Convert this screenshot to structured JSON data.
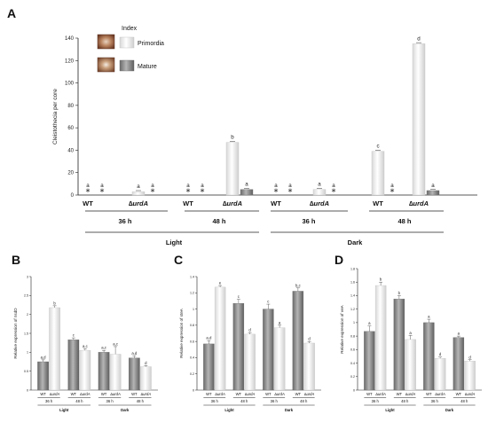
{
  "panel_letters": {
    "A": "A",
    "B": "B",
    "C": "C",
    "D": "D"
  },
  "labels": {
    "WT": "WT",
    "mut": "∆urdA",
    "t36": "36 h",
    "t48": "48 h",
    "light": "Light",
    "dark": "Dark",
    "star": "*"
  },
  "legend": {
    "title": "Index",
    "primordia": "Primordia",
    "mature": "Mature"
  },
  "colors": {
    "light_bar": "#eeeeee",
    "dark_bar": "#888888",
    "axis": "#222222"
  },
  "chart_data": [
    {
      "panel": "A",
      "type": "bar",
      "ylabel": "Cleistothecia per core",
      "ylim": [
        0,
        140
      ],
      "yticks": [
        0,
        20,
        40,
        60,
        80,
        100,
        120,
        140
      ],
      "groups": [
        {
          "light": "Light",
          "time": "36 h",
          "strain": "WT",
          "primordia": 0,
          "mature": 0,
          "letters": [
            "a",
            "a"
          ],
          "stars": [
            true,
            true
          ]
        },
        {
          "light": "Light",
          "time": "36 h",
          "strain": "∆urdA",
          "primordia": 3,
          "mature": 0,
          "letters": [
            "a",
            "a"
          ],
          "stars": [
            false,
            true
          ]
        },
        {
          "light": "Light",
          "time": "48 h",
          "strain": "WT",
          "primordia": 0,
          "mature": 0,
          "letters": [
            "a",
            "a"
          ],
          "stars": [
            true,
            true
          ]
        },
        {
          "light": "Light",
          "time": "48 h",
          "strain": "∆urdA",
          "primordia": 47,
          "mature": 5,
          "letters": [
            "b",
            "a"
          ],
          "stars": [
            false,
            false
          ]
        },
        {
          "light": "Dark",
          "time": "36 h",
          "strain": "WT",
          "primordia": 0,
          "mature": 0,
          "letters": [
            "a",
            "a"
          ],
          "stars": [
            true,
            true
          ]
        },
        {
          "light": "Dark",
          "time": "36 h",
          "strain": "∆urdA",
          "primordia": 5,
          "mature": 0,
          "letters": [
            "a",
            "a"
          ],
          "stars": [
            false,
            true
          ]
        },
        {
          "light": "Dark",
          "time": "48 h",
          "strain": "WT",
          "primordia": 39,
          "mature": 0,
          "letters": [
            "c",
            "a"
          ],
          "stars": [
            false,
            true
          ]
        },
        {
          "light": "Dark",
          "time": "48 h",
          "strain": "∆urdA",
          "primordia": 135,
          "mature": 4,
          "letters": [
            "d",
            "a"
          ],
          "stars": [
            false,
            false
          ]
        }
      ]
    },
    {
      "panel": "B",
      "type": "bar",
      "ylabel": "Relative expression of nsdD",
      "ylim": [
        0,
        3.0
      ],
      "yticks": [
        "0",
        "0.5",
        "1",
        "1.5",
        "2",
        "2.5",
        "3"
      ],
      "categories": [
        "WT",
        "∆urdA",
        "WT",
        "∆urdA",
        "WT",
        "∆urdA",
        "WT",
        "∆urdA"
      ],
      "values": [
        0.75,
        2.18,
        1.33,
        1.05,
        1.0,
        0.95,
        0.85,
        0.62
      ],
      "errors": [
        0.05,
        0.05,
        0.05,
        0.04,
        0.05,
        0.2,
        0.05,
        0.03
      ],
      "letters": [
        "a,d",
        "b",
        "c",
        "a,c",
        "a,c",
        "a,c",
        "a,d",
        "d"
      ]
    },
    {
      "panel": "C",
      "type": "bar",
      "ylabel": "Relative expression of steA",
      "ylim": [
        0,
        1.4
      ],
      "yticks": [
        "0",
        "0.2",
        "0.4",
        "0.6",
        "0.8",
        "1",
        "1.2",
        "1.4"
      ],
      "categories": [
        "WT",
        "∆urdA",
        "WT",
        "∆urdA",
        "WT",
        "∆urdA",
        "WT",
        "∆urdA"
      ],
      "values": [
        0.57,
        1.27,
        1.07,
        0.69,
        1.0,
        0.77,
        1.22,
        0.58
      ],
      "errors": [
        0.04,
        0.02,
        0.05,
        0.02,
        0.06,
        0.03,
        0.04,
        0.02
      ],
      "letters": [
        "a,d",
        "e",
        "c",
        "d",
        "c",
        "a",
        "b,c",
        "d"
      ]
    },
    {
      "panel": "D",
      "type": "bar",
      "ylabel": "Relative expression of veA",
      "ylim": [
        0,
        1.8
      ],
      "yticks": [
        "0",
        "0.2",
        "0.4",
        "0.6",
        "0.8",
        "1",
        "1.2",
        "1.4",
        "1.6",
        "1.8"
      ],
      "categories": [
        "WT",
        "∆urdA",
        "WT",
        "∆urdA",
        "WT",
        "∆urdA",
        "WT",
        "∆urdA"
      ],
      "values": [
        0.87,
        1.55,
        1.35,
        0.75,
        1.0,
        0.47,
        0.78,
        0.43
      ],
      "errors": [
        0.08,
        0.05,
        0.05,
        0.06,
        0.05,
        0.02,
        0.02,
        0.02
      ],
      "letters": [
        "a",
        "b",
        "b",
        "a",
        "a",
        "d",
        "a",
        "d"
      ]
    }
  ]
}
